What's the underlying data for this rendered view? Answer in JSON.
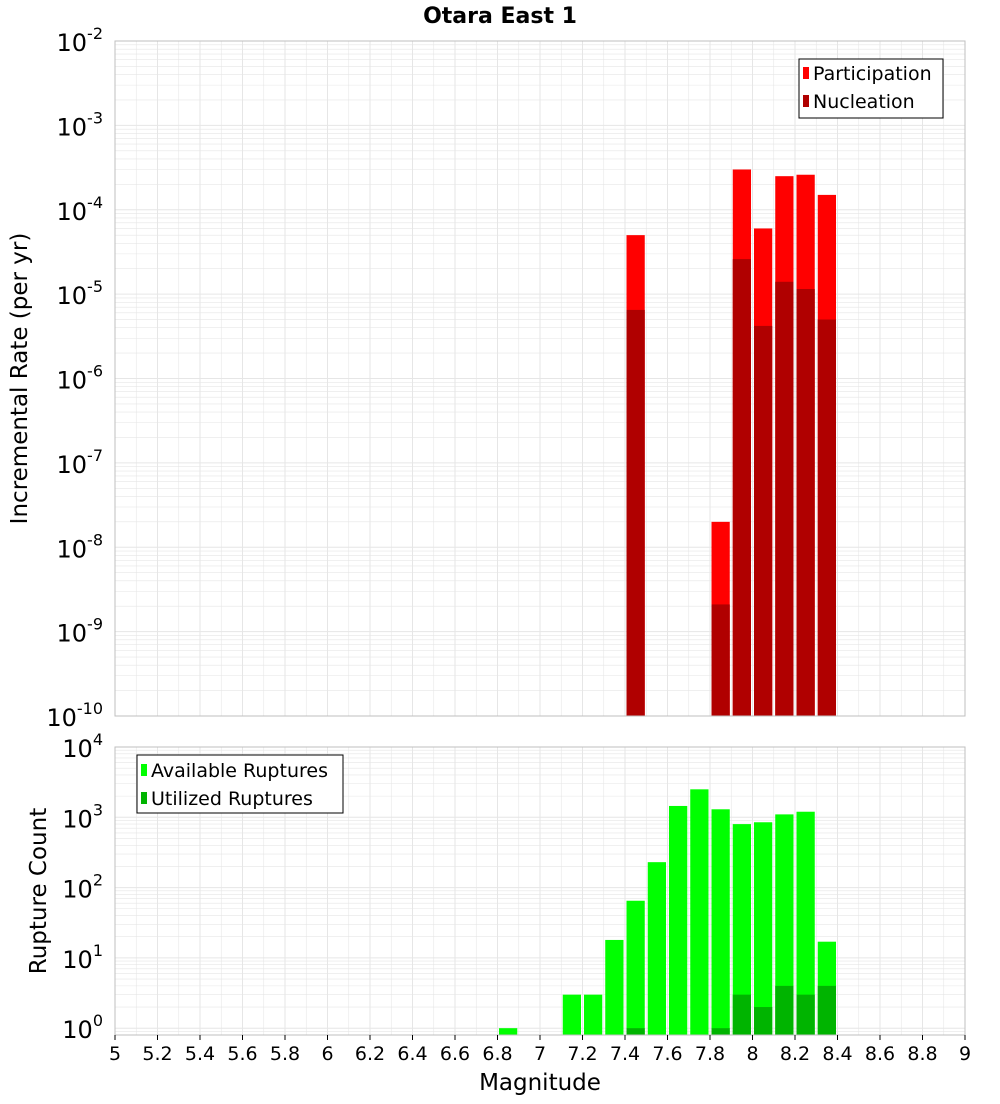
{
  "colors": {
    "participation": "#ff0000",
    "nucleation": "#b00000",
    "available": "#00ff00",
    "utilized": "#00b400",
    "grid": "#e6e6e6",
    "frame": "#bfbfbf"
  },
  "chart_data": [
    {
      "type": "bar",
      "title": "Otara East 1",
      "xlabel": "",
      "ylabel": "Incremental Rate (per yr)",
      "yscale": "log",
      "xlim": [
        5,
        9
      ],
      "ylim": [
        1e-10,
        0.01
      ],
      "bar_width": 0.1,
      "y_ticks": [
        {
          "value": 1e-10,
          "base": "10",
          "exp": "-10"
        },
        {
          "value": 1e-09,
          "base": "10",
          "exp": "-9"
        },
        {
          "value": 1e-08,
          "base": "10",
          "exp": "-8"
        },
        {
          "value": 1e-07,
          "base": "10",
          "exp": "-7"
        },
        {
          "value": 1e-06,
          "base": "10",
          "exp": "-6"
        },
        {
          "value": 1e-05,
          "base": "10",
          "exp": "-5"
        },
        {
          "value": 0.0001,
          "base": "10",
          "exp": "-4"
        },
        {
          "value": 0.001,
          "base": "10",
          "exp": "-3"
        },
        {
          "value": 0.01,
          "base": "10",
          "exp": "-2"
        }
      ],
      "legend": {
        "position": "top-right",
        "entries": [
          "Participation",
          "Nucleation"
        ]
      },
      "series": [
        {
          "name": "Participation",
          "x": [
            7.45,
            7.85,
            7.95,
            8.05,
            8.15,
            8.25,
            8.35
          ],
          "values": [
            5e-05,
            2e-08,
            0.0003,
            6e-05,
            0.00025,
            0.00026,
            0.00015
          ]
        },
        {
          "name": "Nucleation",
          "x": [
            7.45,
            7.85,
            7.95,
            8.05,
            8.15,
            8.25,
            8.35
          ],
          "values": [
            6.5e-06,
            2.1e-09,
            2.6e-05,
            4.2e-06,
            1.4e-05,
            1.15e-05,
            5e-06
          ]
        }
      ]
    },
    {
      "type": "bar",
      "title": "",
      "xlabel": "Magnitude",
      "ylabel": "Rupture Count",
      "yscale": "log",
      "xlim": [
        5,
        9
      ],
      "ylim": [
        0.8,
        10000
      ],
      "bar_width": 0.1,
      "x_ticks": [
        "5",
        "5.2",
        "5.4",
        "5.6",
        "5.8",
        "6",
        "6.2",
        "6.4",
        "6.6",
        "6.8",
        "7",
        "7.2",
        "7.4",
        "7.6",
        "7.8",
        "8",
        "8.2",
        "8.4",
        "8.6",
        "8.8",
        "9"
      ],
      "y_ticks": [
        {
          "value": 1,
          "base": "10",
          "exp": "0"
        },
        {
          "value": 10,
          "base": "10",
          "exp": "1"
        },
        {
          "value": 100,
          "base": "10",
          "exp": "2"
        },
        {
          "value": 1000,
          "base": "10",
          "exp": "3"
        },
        {
          "value": 10000,
          "base": "10",
          "exp": "4"
        }
      ],
      "legend": {
        "position": "top-left",
        "entries": [
          "Available Ruptures",
          "Utilized Ruptures"
        ]
      },
      "series": [
        {
          "name": "Available Ruptures",
          "x": [
            6.85,
            7.15,
            7.25,
            7.35,
            7.45,
            7.55,
            7.65,
            7.75,
            7.85,
            7.95,
            8.05,
            8.15,
            8.25,
            8.35
          ],
          "values": [
            1,
            3,
            3,
            18,
            65,
            230,
            1450,
            2500,
            1300,
            800,
            850,
            1100,
            1200,
            17
          ]
        },
        {
          "name": "Utilized Ruptures",
          "x": [
            7.45,
            7.85,
            7.95,
            8.05,
            8.15,
            8.25,
            8.35
          ],
          "values": [
            1,
            1,
            3,
            2,
            4,
            3,
            4
          ]
        }
      ]
    }
  ]
}
